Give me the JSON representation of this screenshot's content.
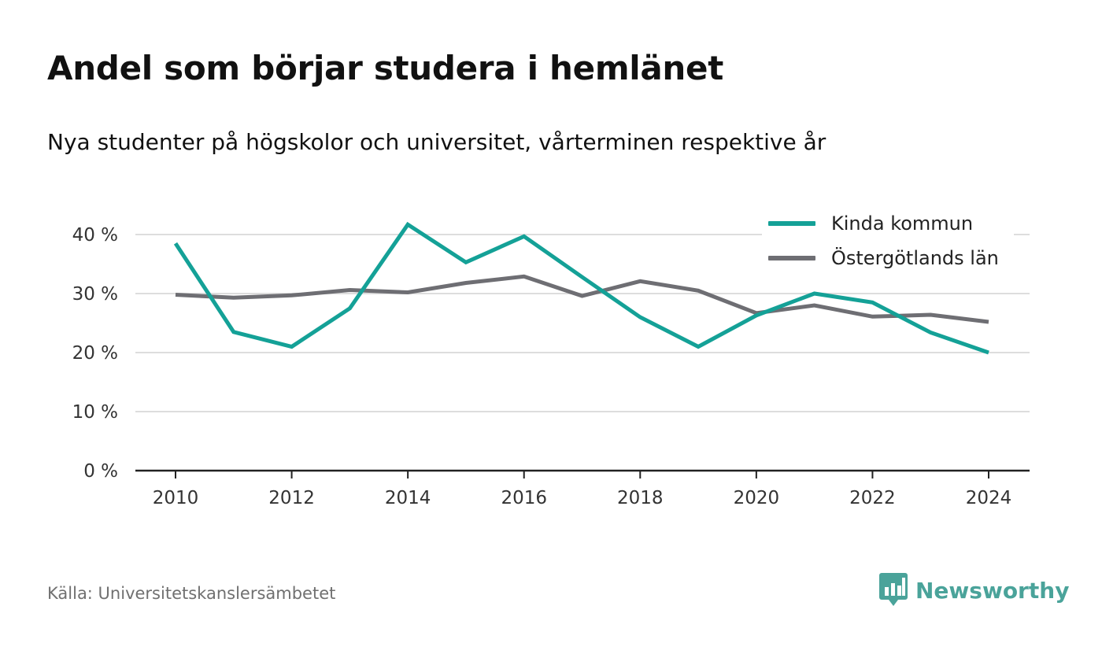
{
  "title": "Andel som börjar studera i hemlänet",
  "subtitle": "Nya studenter på högskolor och universitet, vårterminen respektive år",
  "source": "Källa: Universitetskanslersämbetet",
  "logo": {
    "text": "Newsworthy",
    "icon": "bar-chart-speech-icon",
    "color": "#4aa39a"
  },
  "colors": {
    "series1": "#14a197",
    "series2": "#6e6e73",
    "grid": "#dddddd",
    "axis": "#222222"
  },
  "chart_data": {
    "type": "line",
    "x": [
      2010,
      2011,
      2012,
      2013,
      2014,
      2015,
      2016,
      2017,
      2018,
      2019,
      2020,
      2021,
      2022,
      2023,
      2024
    ],
    "series": [
      {
        "name": "Kinda kommun",
        "values": [
          38.5,
          23.5,
          21.0,
          27.5,
          41.7,
          35.3,
          39.7,
          32.8,
          26.0,
          21.0,
          26.3,
          30.0,
          28.5,
          23.4,
          20.0
        ]
      },
      {
        "name": "Östergötlands län",
        "values": [
          29.8,
          29.3,
          29.7,
          30.6,
          30.2,
          31.8,
          32.9,
          29.6,
          32.1,
          30.5,
          26.7,
          28.0,
          26.1,
          26.4,
          25.2
        ]
      }
    ],
    "xticks": [
      "2010",
      "2012",
      "2014",
      "2016",
      "2018",
      "2020",
      "2022",
      "2024"
    ],
    "yticks": [
      "0 %",
      "10 %",
      "20 %",
      "30 %",
      "40 %"
    ],
    "ylim": [
      0,
      40
    ],
    "xlim": [
      2010,
      2024
    ],
    "grid": true,
    "legend_position": "top-right"
  }
}
